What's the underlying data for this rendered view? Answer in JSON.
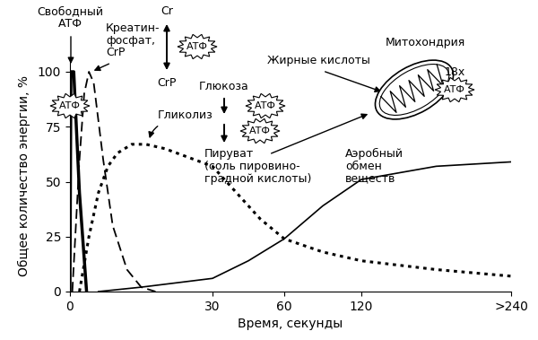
{
  "chart_data": {
    "type": "line",
    "x_label": "Время, секунды",
    "y_label": "Общее количество энергии, %",
    "xlim": [
      0,
      240
    ],
    "xticks": [
      0,
      30,
      60,
      120,
      {
        "value": 240,
        "label": ">240"
      }
    ],
    "ylim": [
      0,
      105
    ],
    "yticks": [
      0,
      25,
      50,
      75,
      100
    ],
    "grid": false,
    "series": [
      {
        "name": "Свободный\nАТФ",
        "color": "#000000",
        "line_style": "solid",
        "x": [
          0,
          0.2,
          0.8,
          2,
          3.5
        ],
        "values": [
          0,
          100,
          100,
          45,
          0
        ]
      },
      {
        "name": "Креатин-\nфосфат,\nCrP",
        "color": "#000000",
        "line_style": "dashed",
        "x": [
          0.5,
          2,
          3,
          4,
          5,
          7,
          9,
          12,
          15,
          18
        ],
        "values": [
          0,
          60,
          90,
          100,
          95,
          60,
          30,
          10,
          2,
          0
        ]
      },
      {
        "name": "Гликолиз",
        "color": "#000000",
        "line_style": "dotted",
        "x": [
          2,
          4,
          6,
          8,
          10,
          13,
          16,
          20,
          30,
          40,
          50,
          60,
          90,
          120,
          180,
          240
        ],
        "values": [
          0,
          25,
          45,
          57,
          63,
          67,
          67,
          65,
          57,
          45,
          33,
          24,
          18,
          14,
          10,
          7
        ]
      },
      {
        "name": "Аэробный\nобмен\nвеществ",
        "color": "#000000",
        "line_style": "solid",
        "x": [
          6,
          15,
          30,
          45,
          60,
          90,
          120,
          180,
          240
        ],
        "values": [
          0,
          2,
          6,
          14,
          24,
          39,
          51,
          57,
          59
        ]
      }
    ],
    "annotations": [
      "Cr",
      "CrP",
      "Глюкоза",
      "Пируват\n(соль пировино-\nградной кислоты)",
      "Жирные кислоты",
      "Митохондрия",
      "18x"
    ],
    "badges": [
      "АТФ",
      "АТФ",
      "АТФ",
      "АТФ",
      "АТФ"
    ]
  }
}
